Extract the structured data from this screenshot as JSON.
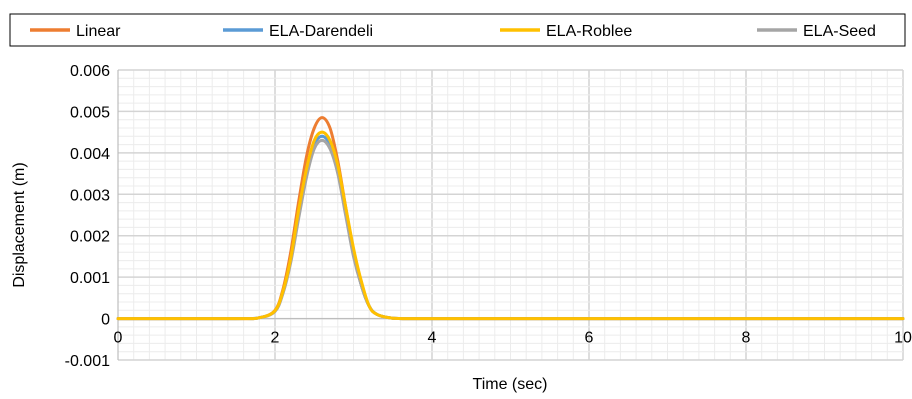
{
  "chart_data": {
    "type": "line",
    "xlabel": "Time (sec)",
    "ylabel": "Displacement (m)",
    "xlim": [
      0,
      10
    ],
    "ylim": [
      -0.001,
      0.006
    ],
    "x_ticks": [
      0,
      2,
      4,
      6,
      8,
      10
    ],
    "y_ticks": [
      -0.001,
      0,
      0.001,
      0.002,
      0.003,
      0.004,
      0.005,
      0.006
    ],
    "x_tick_labels": [
      "0",
      "2",
      "4",
      "6",
      "8",
      "10"
    ],
    "y_tick_labels": [
      "-0.001",
      "0",
      "0.001",
      "0.002",
      "0.003",
      "0.004",
      "0.005",
      "0.006"
    ],
    "grid": true,
    "legend_position": "top",
    "x": [
      0,
      1.5,
      1.8,
      2.0,
      2.1,
      2.2,
      2.3,
      2.4,
      2.5,
      2.6,
      2.7,
      2.8,
      2.9,
      3.0,
      3.1,
      3.2,
      3.3,
      3.5,
      3.8,
      4.0,
      6.0,
      8.0,
      10.0
    ],
    "series": [
      {
        "name": "Linear",
        "color": "#ED7D31",
        "values": [
          0,
          0,
          2e-05,
          0.0002,
          0.0007,
          0.0016,
          0.0028,
          0.0039,
          0.0046,
          0.00485,
          0.0046,
          0.0038,
          0.0027,
          0.0016,
          0.0008,
          0.0003,
          0.0001,
          1e-05,
          0,
          0,
          0,
          0,
          0
        ]
      },
      {
        "name": "ELA-Darendeli",
        "color": "#5B9BD5",
        "values": [
          0,
          0,
          2e-05,
          0.00018,
          0.00062,
          0.0014,
          0.0025,
          0.0035,
          0.0042,
          0.0044,
          0.0042,
          0.0036,
          0.0026,
          0.0016,
          0.0008,
          0.0003,
          0.0001,
          1e-05,
          0,
          0,
          0,
          0,
          0
        ]
      },
      {
        "name": "ELA-Roblee",
        "color": "#FFC000",
        "values": [
          0,
          0,
          2e-05,
          0.00019,
          0.00065,
          0.00145,
          0.0026,
          0.0036,
          0.0043,
          0.0045,
          0.0043,
          0.0037,
          0.0027,
          0.0017,
          0.0009,
          0.0003,
          0.0001,
          1e-05,
          0,
          0,
          0,
          0,
          0
        ]
      },
      {
        "name": "ELA-Seed",
        "color": "#A5A5A5",
        "values": [
          0,
          0,
          2e-05,
          0.00017,
          0.0006,
          0.00135,
          0.0024,
          0.0034,
          0.0041,
          0.0043,
          0.0041,
          0.0035,
          0.0025,
          0.0015,
          0.0008,
          0.0003,
          0.0001,
          1e-05,
          0,
          0,
          0,
          0,
          0
        ]
      }
    ]
  }
}
